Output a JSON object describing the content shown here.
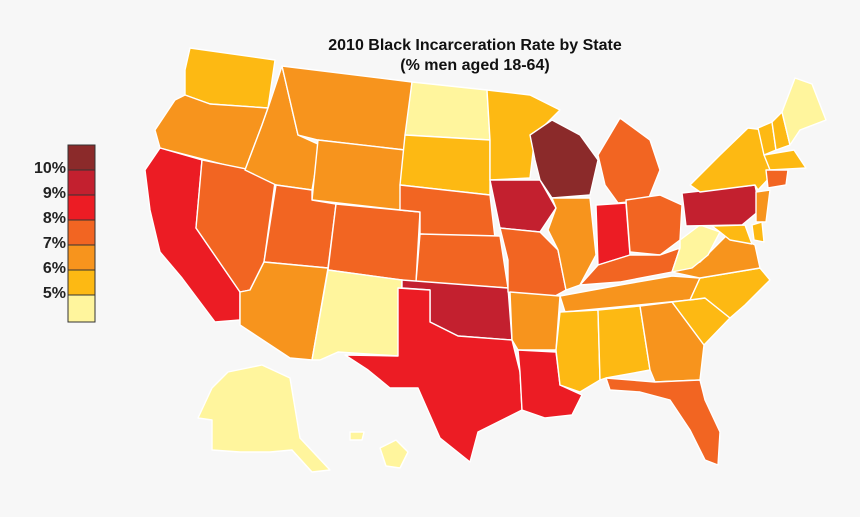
{
  "title": "2010 Black Incarceration Rate by State",
  "subtitle": "(% men aged 18-64)",
  "legend": [
    {
      "label": "10%",
      "color": "#8b2a2a"
    },
    {
      "label": "9%",
      "color": "#c3202f"
    },
    {
      "label": "8%",
      "color": "#ec1c24"
    },
    {
      "label": "7%",
      "color": "#f26522"
    },
    {
      "label": "6%",
      "color": "#f7941d"
    },
    {
      "label": "5%",
      "color": "#fdb913"
    },
    {
      "label": "",
      "color": "#fff59d"
    }
  ],
  "states": [
    {
      "name": "Washington",
      "color": "#fdb913"
    },
    {
      "name": "Oregon",
      "color": "#f7941d"
    },
    {
      "name": "California",
      "color": "#ec1c24"
    },
    {
      "name": "Nevada",
      "color": "#f26522"
    },
    {
      "name": "Idaho",
      "color": "#f7941d"
    },
    {
      "name": "Montana",
      "color": "#f7941d"
    },
    {
      "name": "Wyoming",
      "color": "#f7941d"
    },
    {
      "name": "Utah",
      "color": "#f26522"
    },
    {
      "name": "Arizona",
      "color": "#f7941d"
    },
    {
      "name": "Colorado",
      "color": "#f26522"
    },
    {
      "name": "New Mexico",
      "color": "#fff59d"
    },
    {
      "name": "North Dakota",
      "color": "#fff59d"
    },
    {
      "name": "South Dakota",
      "color": "#fdb913"
    },
    {
      "name": "Nebraska",
      "color": "#f26522"
    },
    {
      "name": "Kansas",
      "color": "#f26522"
    },
    {
      "name": "Oklahoma",
      "color": "#c3202f"
    },
    {
      "name": "Texas",
      "color": "#ec1c24"
    },
    {
      "name": "Minnesota",
      "color": "#fdb913"
    },
    {
      "name": "Iowa",
      "color": "#c3202f"
    },
    {
      "name": "Missouri",
      "color": "#f26522"
    },
    {
      "name": "Arkansas",
      "color": "#f7941d"
    },
    {
      "name": "Louisiana",
      "color": "#ec1c24"
    },
    {
      "name": "Wisconsin",
      "color": "#8b2a2a"
    },
    {
      "name": "Illinois",
      "color": "#f7941d"
    },
    {
      "name": "Michigan",
      "color": "#f26522"
    },
    {
      "name": "Indiana",
      "color": "#ec1c24"
    },
    {
      "name": "Ohio",
      "color": "#f26522"
    },
    {
      "name": "Kentucky",
      "color": "#f26522"
    },
    {
      "name": "Tennessee",
      "color": "#f7941d"
    },
    {
      "name": "Mississippi",
      "color": "#fdb913"
    },
    {
      "name": "Alabama",
      "color": "#fdb913"
    },
    {
      "name": "Georgia",
      "color": "#f7941d"
    },
    {
      "name": "Florida",
      "color": "#f26522"
    },
    {
      "name": "South Carolina",
      "color": "#fdb913"
    },
    {
      "name": "North Carolina",
      "color": "#fdb913"
    },
    {
      "name": "Virginia",
      "color": "#f7941d"
    },
    {
      "name": "West Virginia",
      "color": "#fff59d"
    },
    {
      "name": "Pennsylvania",
      "color": "#c3202f"
    },
    {
      "name": "New York",
      "color": "#fdb913"
    },
    {
      "name": "Vermont",
      "color": "#fdb913"
    },
    {
      "name": "New Hampshire",
      "color": "#fdb913"
    },
    {
      "name": "Maine",
      "color": "#fff59d"
    },
    {
      "name": "Massachusetts",
      "color": "#fdb913"
    },
    {
      "name": "Connecticut",
      "color": "#f26522"
    },
    {
      "name": "New Jersey",
      "color": "#f7941d"
    },
    {
      "name": "Delaware",
      "color": "#fdb913"
    },
    {
      "name": "Maryland",
      "color": "#fdb913"
    },
    {
      "name": "Alaska",
      "color": "#fff59d"
    },
    {
      "name": "Hawaii",
      "color": "#fff59d"
    }
  ]
}
